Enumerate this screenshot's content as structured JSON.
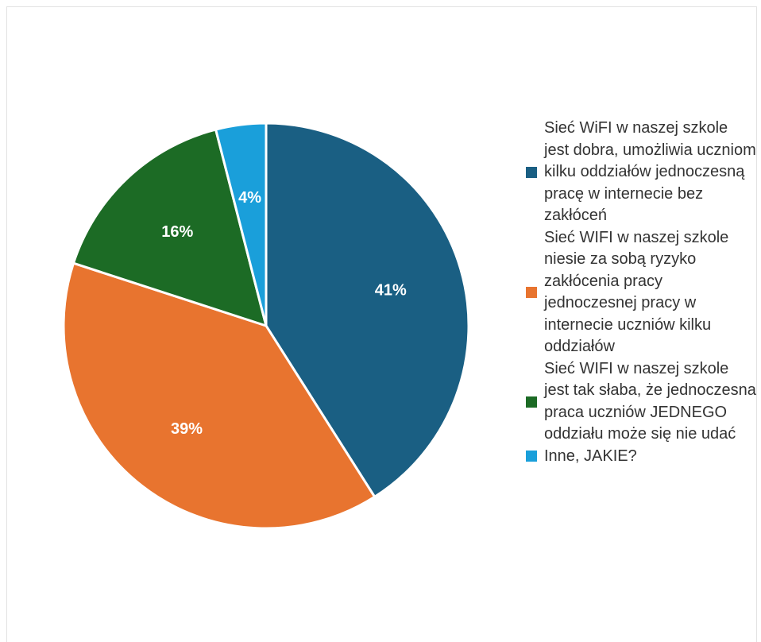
{
  "chart_data": {
    "type": "pie",
    "title": "",
    "slices": [
      {
        "label": "Sieć WiFI w naszej szkole jest dobra, umożliwia uczniom kilku oddziałów jednoczesną pracę w internecie bez zakłóceń",
        "value": 41,
        "display": "41%",
        "color": "#1a5f83"
      },
      {
        "label": "Sieć WIFI w naszej szkole niesie za sobą ryzyko zakłócenia pracy jednoczesnej pracy w internecie uczniów kilku oddziałów",
        "value": 39,
        "display": "39%",
        "color": "#e8742f"
      },
      {
        "label": "Sieć WIFI w naszej szkole jest tak słaba, że jednoczesna praca uczniów JEDNEGO oddziału może się nie udać",
        "value": 16,
        "display": "16%",
        "color": "#1c6b25"
      },
      {
        "label": "Inne, JAKIE?",
        "value": 4,
        "display": "4%",
        "color": "#1a9fda"
      }
    ],
    "legend_position": "right"
  }
}
